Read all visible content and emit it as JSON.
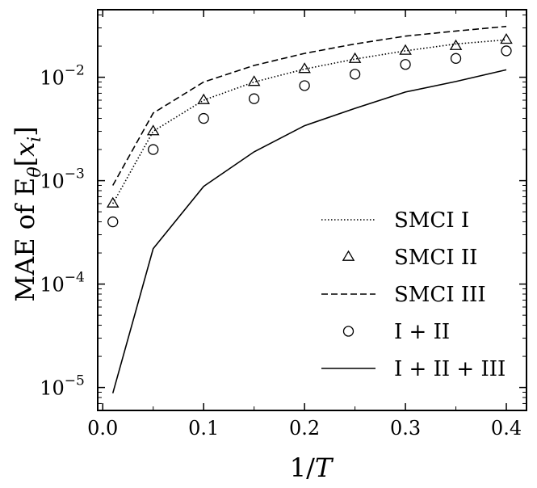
{
  "chart_data": {
    "type": "line",
    "title": "",
    "xlabel": "1/T",
    "ylabel": "MAE of E_θ[x_i]",
    "xlim": [
      -0.005,
      0.42
    ],
    "ylim": [
      6e-06,
      0.045
    ],
    "yscale": "log",
    "grid": false,
    "legend_position": "bottom-right",
    "x_ticks": [
      0.0,
      0.1,
      0.2,
      0.3,
      0.4
    ],
    "x_tick_labels": [
      "0.0",
      "0.1",
      "0.2",
      "0.3",
      "0.4"
    ],
    "y_ticks": [
      1e-05,
      0.0001,
      0.001,
      0.01
    ],
    "y_tick_labels": [
      {
        "base": "10",
        "exp": "−5"
      },
      {
        "base": "10",
        "exp": "−4"
      },
      {
        "base": "10",
        "exp": "−3"
      },
      {
        "base": "10",
        "exp": "−2"
      }
    ],
    "x": [
      0.01,
      0.05,
      0.1,
      0.15,
      0.2,
      0.25,
      0.3,
      0.35,
      0.4
    ],
    "series": [
      {
        "name": "SMCI I",
        "style": "dotted",
        "values": [
          0.0006,
          0.003,
          0.006,
          0.009,
          0.012,
          0.015,
          0.018,
          0.021,
          0.023
        ]
      },
      {
        "name": "SMCI II",
        "style": "triangle",
        "values": [
          0.0006,
          0.003,
          0.006,
          0.009,
          0.012,
          0.015,
          0.018,
          0.02,
          0.023
        ]
      },
      {
        "name": "SMCI III",
        "style": "dashed",
        "values": [
          0.0009,
          0.0045,
          0.009,
          0.013,
          0.017,
          0.021,
          0.025,
          0.028,
          0.031
        ]
      },
      {
        "name": "I + II",
        "style": "circle",
        "values": [
          0.0004,
          0.002,
          0.004,
          0.0062,
          0.0083,
          0.0107,
          0.0133,
          0.0152,
          0.018
        ]
      },
      {
        "name": "I + II + III",
        "style": "solid",
        "values": [
          8.8e-06,
          0.00022,
          0.00088,
          0.0019,
          0.0034,
          0.005,
          0.0072,
          0.0091,
          0.0118
        ]
      }
    ]
  }
}
